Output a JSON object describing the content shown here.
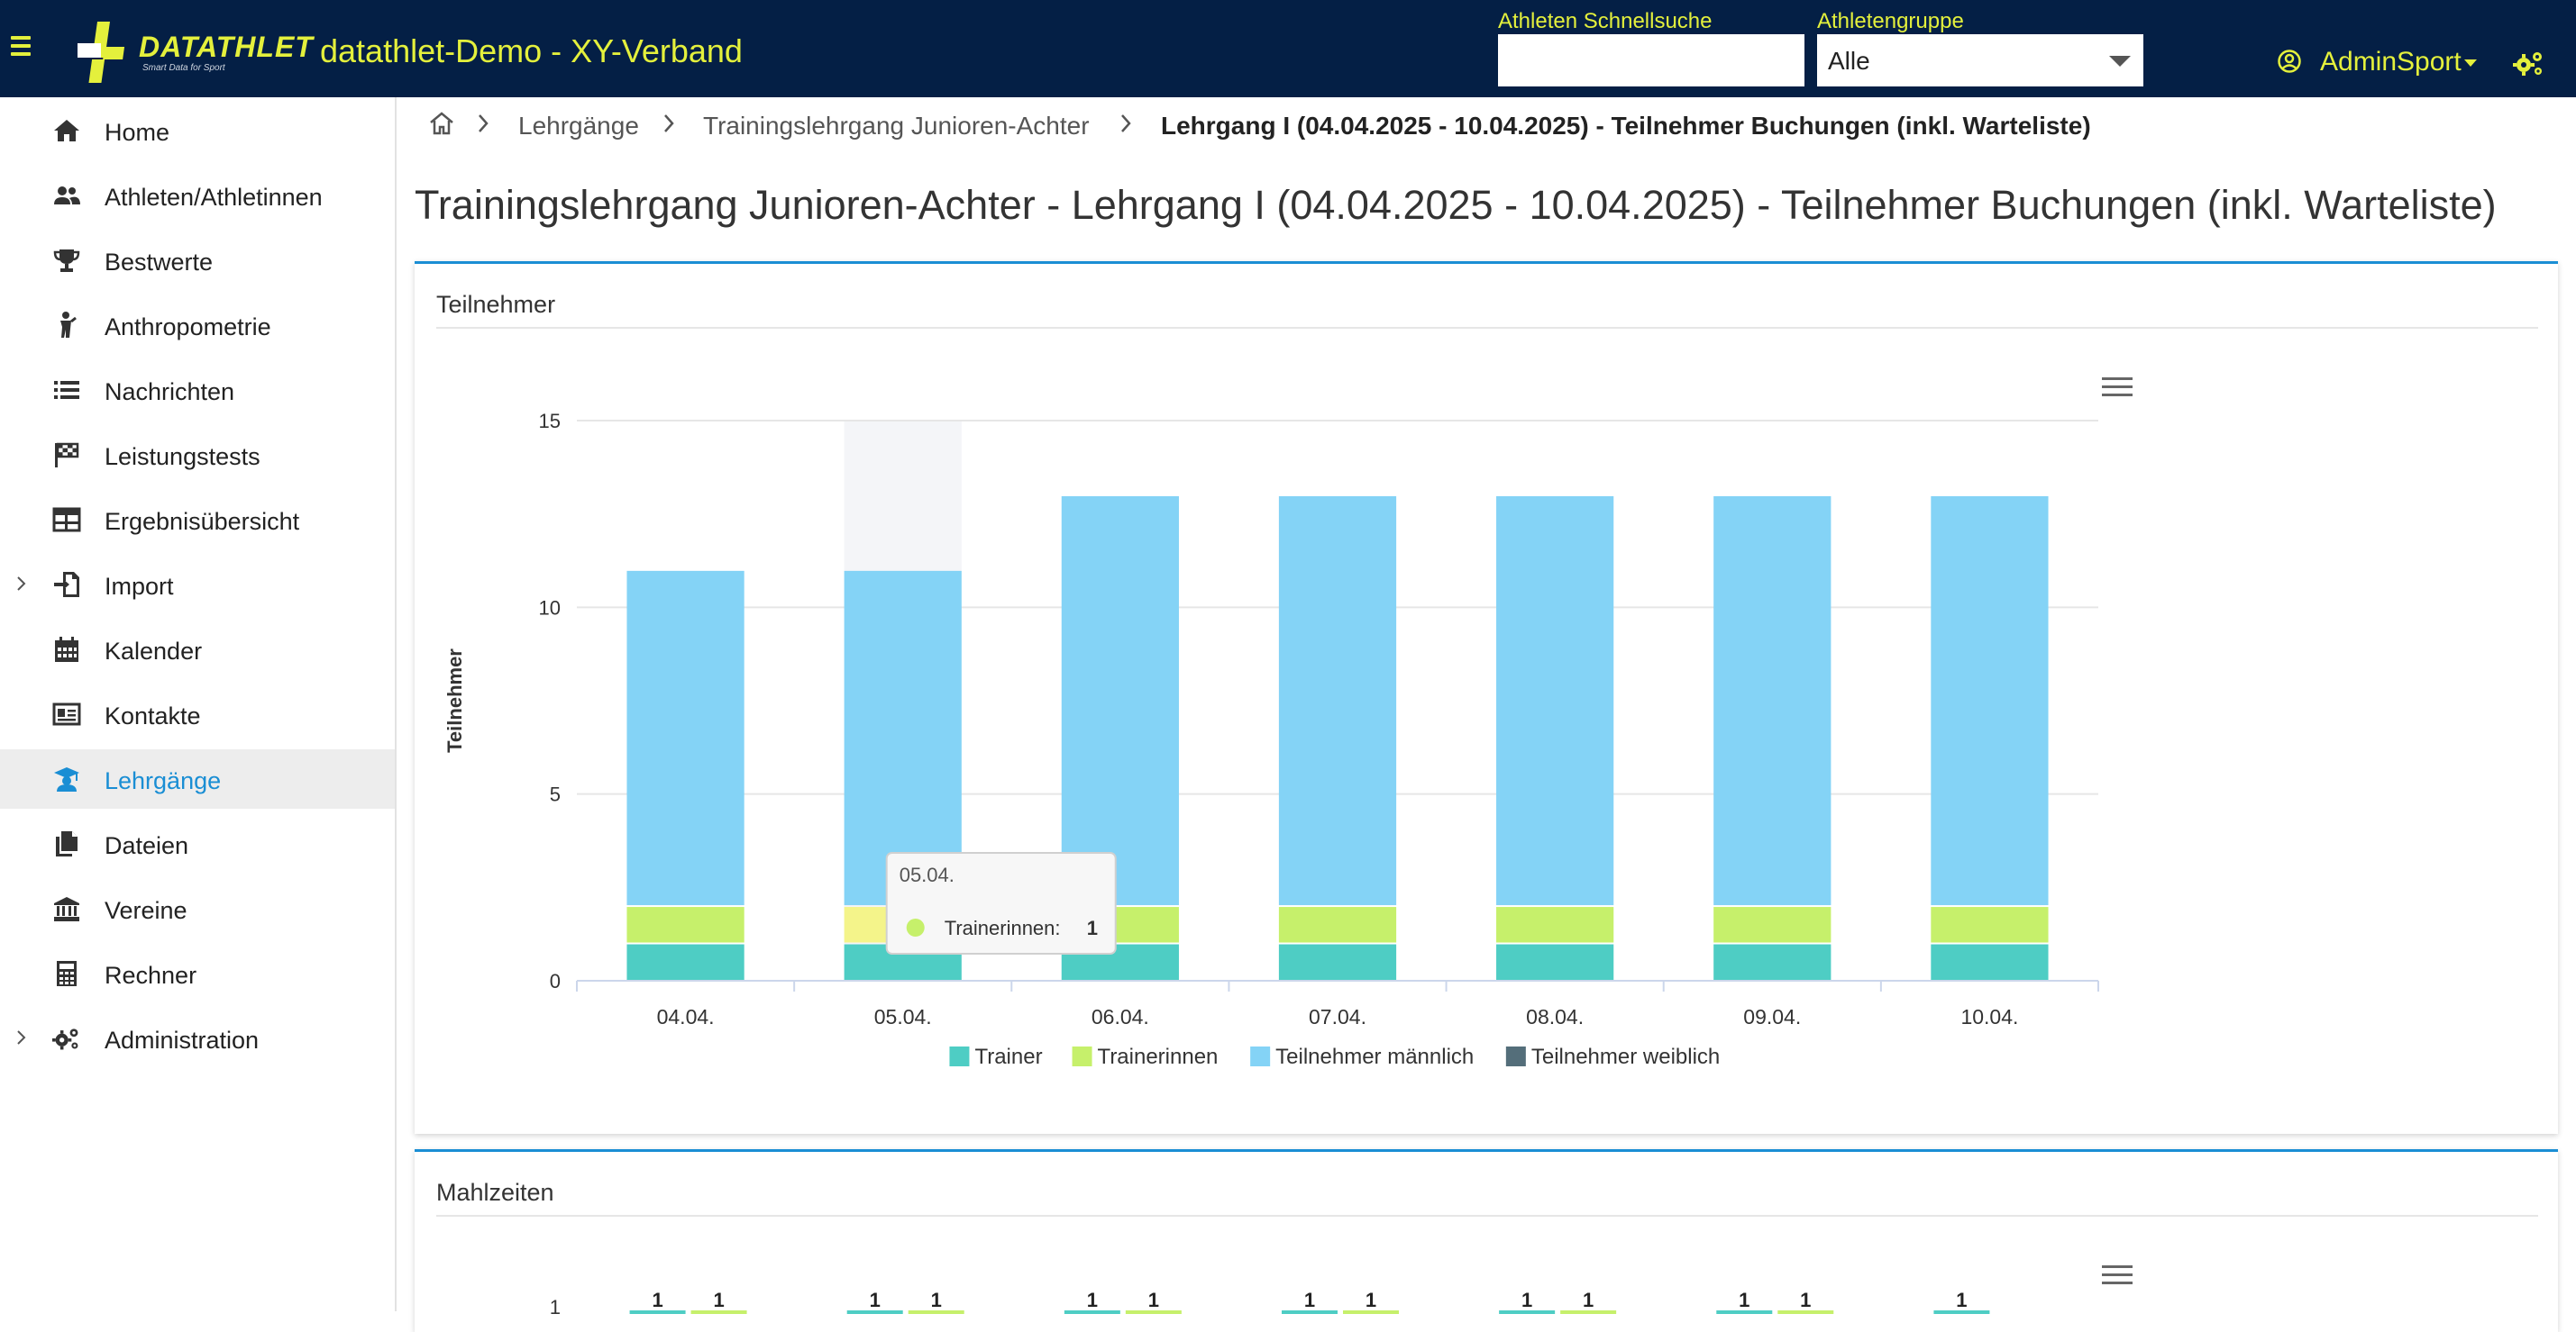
{
  "app": {
    "logo_text": "DATATHLET",
    "logo_tagline": "Smart Data for Sport",
    "title": "datathlet-Demo - XY-Verband"
  },
  "header": {
    "search_label": "Athleten Schnellsuche",
    "search_value": "",
    "group_label": "Athletengruppe",
    "group_value": "Alle",
    "user_name": "AdminSport"
  },
  "sidebar": {
    "items": [
      {
        "label": "Home",
        "icon": "home-icon"
      },
      {
        "label": "Athleten/Athletinnen",
        "icon": "users-icon"
      },
      {
        "label": "Bestwerte",
        "icon": "trophy-icon"
      },
      {
        "label": "Anthropometrie",
        "icon": "person-icon"
      },
      {
        "label": "Nachrichten",
        "icon": "list-icon"
      },
      {
        "label": "Leistungstests",
        "icon": "flag-icon"
      },
      {
        "label": "Ergebnisübersicht",
        "icon": "table-icon"
      },
      {
        "label": "Import",
        "icon": "import-icon"
      },
      {
        "label": "Kalender",
        "icon": "calendar-icon"
      },
      {
        "label": "Kontakte",
        "icon": "contact-card-icon"
      },
      {
        "label": "Lehrgänge",
        "icon": "graduation-icon"
      },
      {
        "label": "Dateien",
        "icon": "files-icon"
      },
      {
        "label": "Vereine",
        "icon": "building-icon"
      },
      {
        "label": "Rechner",
        "icon": "calculator-icon"
      },
      {
        "label": "Administration",
        "icon": "gears-icon"
      }
    ],
    "active_index": 10
  },
  "breadcrumb": {
    "items": [
      "Lehrgänge",
      "Trainingslehrgang Junioren-Achter",
      "Lehrgang I (04.04.2025 - 10.04.2025) - Teilnehmer Buchungen (inkl. Warteliste)"
    ]
  },
  "page": {
    "title": "Trainingslehrgang Junioren-Achter - Lehrgang I (04.04.2025 - 10.04.2025) - Teilnehmer Buchungen (inkl. Warteliste)"
  },
  "cards": {
    "participants_title": "Teilnehmer",
    "meals_title": "Mahlzeiten"
  },
  "tooltip": {
    "date": "05.04.",
    "series": "Trainerinnen",
    "value": "1"
  },
  "colors": {
    "Trainer": "#4ecdc4",
    "Trainerinnen": "#c6f06b",
    "Teilnehmer männlich": "#84d3f6",
    "Teilnehmer weiblich": "#546e7a",
    "accent": "#1a8ed4",
    "header_bg": "#041f45",
    "header_fg": "#e4f03c"
  },
  "chart_data": [
    {
      "type": "bar",
      "stacked": true,
      "ylabel": "Teilnehmer",
      "xlabel": "",
      "ylim": [
        0,
        15
      ],
      "yticks": [
        0,
        5,
        10,
        15
      ],
      "categories": [
        "04.04.",
        "05.04.",
        "06.04.",
        "07.04.",
        "08.04.",
        "09.04.",
        "10.04."
      ],
      "series": [
        {
          "name": "Trainer",
          "values": [
            1,
            1,
            1,
            1,
            1,
            1,
            1
          ]
        },
        {
          "name": "Trainerinnen",
          "values": [
            1,
            1,
            1,
            1,
            1,
            1,
            1
          ]
        },
        {
          "name": "Teilnehmer männlich",
          "values": [
            9,
            9,
            11,
            11,
            11,
            11,
            11
          ]
        },
        {
          "name": "Teilnehmer weiblich",
          "values": [
            0,
            0,
            0,
            0,
            0,
            0,
            0
          ]
        }
      ],
      "legend": "bottom",
      "grid": true
    },
    {
      "type": "bar",
      "ytick_visible": "1",
      "series": [
        {
          "name": "Trainer",
          "values": [
            1,
            1,
            1,
            1,
            1,
            1,
            1
          ]
        },
        {
          "name": "Trainerinnen",
          "values": [
            1,
            1,
            1,
            1,
            1,
            1,
            null
          ]
        }
      ]
    }
  ]
}
